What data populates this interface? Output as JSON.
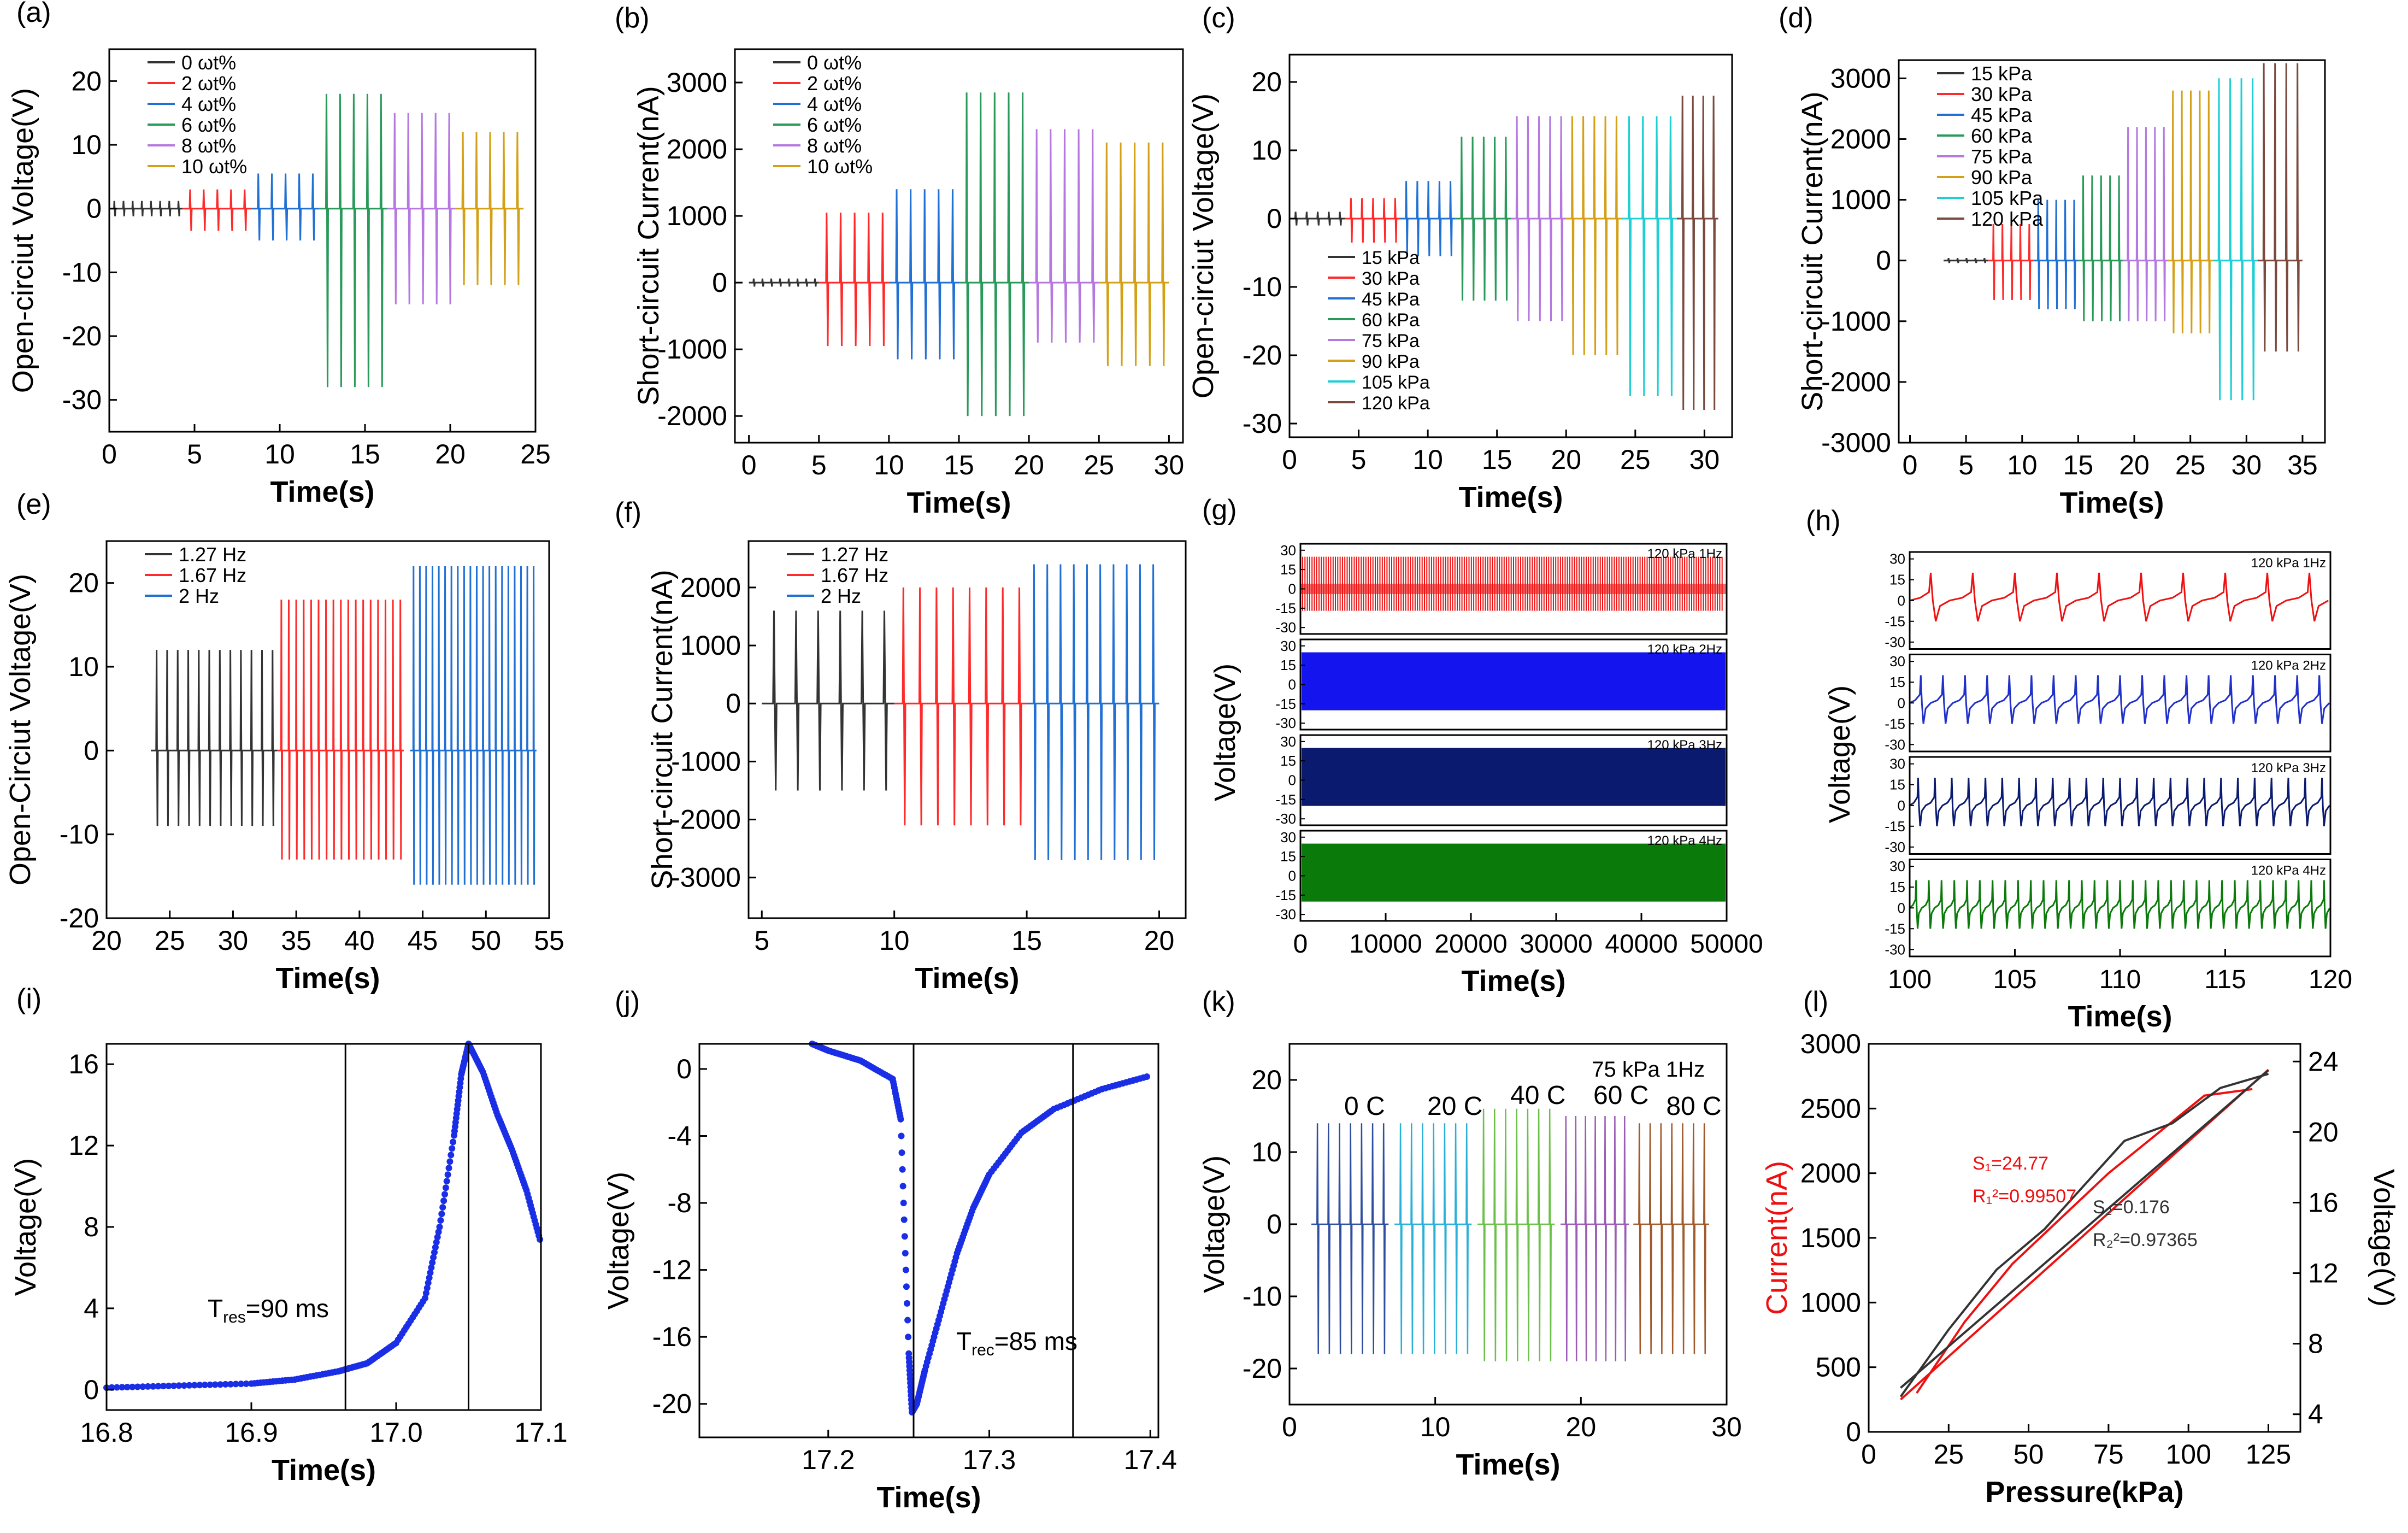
{
  "colors": {
    "c0": "#333333",
    "c1": "#ff2a2a",
    "c2": "#2170d4",
    "c3": "#2a9a5a",
    "c4": "#b578e0",
    "c5": "#d4a017",
    "c6": "#1fcfd4",
    "c7": "#7b4a3e",
    "navy": "#0a1a6e",
    "blue": "#1414ee",
    "green": "#0a7a0a",
    "pred": "#ee1010",
    "pblue": "#2030c8",
    "dotblue": "#1a2ee6",
    "k0": "#2f4ea0",
    "k1": "#2ab0d8",
    "k2": "#6cc04a",
    "k3": "#9a5cb4",
    "k4": "#a05a2c"
  },
  "chart_data": [
    {
      "panel": "(a)",
      "type": "line",
      "xlabel": "Time(s)",
      "ylabel": "Open-circiut Voltage(V)",
      "xlim": [
        0,
        25
      ],
      "ylim": [
        -35,
        25
      ],
      "xticks": [
        "0",
        "5",
        "10",
        "15",
        "20",
        "25"
      ],
      "yticks": [
        "-30",
        "-20",
        "-10",
        "0",
        "10",
        "20"
      ],
      "legend_position": "top-left",
      "series": [
        {
          "name": "0 ωt%",
          "x_range": [
            0,
            4.3
          ],
          "peak": 1.2,
          "trough": -1.2,
          "cycles": 8
        },
        {
          "name": "2 ωt%",
          "x_range": [
            4.3,
            8.3
          ],
          "peak": 3,
          "trough": -3.5,
          "cycles": 5
        },
        {
          "name": "4 ωt%",
          "x_range": [
            8.3,
            12.3
          ],
          "peak": 5.5,
          "trough": -5,
          "cycles": 5
        },
        {
          "name": "6 ωt%",
          "x_range": [
            12.3,
            16.3
          ],
          "peak": 18,
          "trough": -28,
          "cycles": 5
        },
        {
          "name": "8 ωt%",
          "x_range": [
            16.3,
            20.3
          ],
          "peak": 15,
          "trough": -15,
          "cycles": 5
        },
        {
          "name": "10 ωt%",
          "x_range": [
            20.3,
            24.3
          ],
          "peak": 12,
          "trough": -12,
          "cycles": 5
        }
      ]
    },
    {
      "panel": "(b)",
      "type": "line",
      "xlabel": "Time(s)",
      "ylabel": "Short-circuit Current(nA)",
      "xlim": [
        -1,
        31
      ],
      "ylim": [
        -2400,
        3500
      ],
      "xticks": [
        "0",
        "5",
        "10",
        "15",
        "20",
        "25",
        "30"
      ],
      "yticks": [
        "-2000",
        "-1000",
        "0",
        "1000",
        "2000",
        "3000"
      ],
      "legend_position": "top-left",
      "series": [
        {
          "name": "0 ωt%",
          "x_range": [
            0,
            5
          ],
          "peak": 60,
          "trough": -60,
          "cycles": 8
        },
        {
          "name": "2 ωt%",
          "x_range": [
            5,
            10
          ],
          "peak": 1050,
          "trough": -950,
          "cycles": 5
        },
        {
          "name": "4 ωt%",
          "x_range": [
            10,
            15
          ],
          "peak": 1400,
          "trough": -1150,
          "cycles": 5
        },
        {
          "name": "6 ωt%",
          "x_range": [
            15,
            20
          ],
          "peak": 2850,
          "trough": -2000,
          "cycles": 5
        },
        {
          "name": "8 ωt%",
          "x_range": [
            20,
            25
          ],
          "peak": 2300,
          "trough": -900,
          "cycles": 5
        },
        {
          "name": "10 ωt%",
          "x_range": [
            25,
            30
          ],
          "peak": 2100,
          "trough": -1250,
          "cycles": 5
        }
      ]
    },
    {
      "panel": "(c)",
      "type": "line",
      "xlabel": "Time(s)",
      "ylabel": "Open-circiut Voltage(V)",
      "xlim": [
        0,
        32
      ],
      "ylim": [
        -32,
        24
      ],
      "xticks": [
        "0",
        "5",
        "10",
        "15",
        "20",
        "25",
        "30"
      ],
      "yticks": [
        "-30",
        "-20",
        "-10",
        "0",
        "10",
        "20"
      ],
      "legend_position": "bottom-left",
      "series": [
        {
          "name": "15 kPa",
          "x_range": [
            0,
            4
          ],
          "peak": 1,
          "trough": -1,
          "cycles": 5
        },
        {
          "name": "30 kPa",
          "x_range": [
            4,
            8
          ],
          "peak": 3,
          "trough": -3.5,
          "cycles": 5
        },
        {
          "name": "45 kPa",
          "x_range": [
            8,
            12
          ],
          "peak": 5.5,
          "trough": -5.5,
          "cycles": 5
        },
        {
          "name": "60 kPa",
          "x_range": [
            12,
            16
          ],
          "peak": 12,
          "trough": -12,
          "cycles": 5
        },
        {
          "name": "75 kPa",
          "x_range": [
            16,
            20
          ],
          "peak": 15,
          "trough": -15,
          "cycles": 5
        },
        {
          "name": "90 kPa",
          "x_range": [
            20,
            24
          ],
          "peak": 15,
          "trough": -20,
          "cycles": 5
        },
        {
          "name": "105 kPa",
          "x_range": [
            24,
            28
          ],
          "peak": 15,
          "trough": -26,
          "cycles": 4
        },
        {
          "name": "120 kPa",
          "x_range": [
            28,
            31
          ],
          "peak": 18,
          "trough": -28,
          "cycles": 4
        }
      ]
    },
    {
      "panel": "(d)",
      "type": "line",
      "xlabel": "Time(s)",
      "ylabel": "Short-circuit Current(nA)",
      "xlim": [
        -1,
        37
      ],
      "ylim": [
        -3000,
        3300
      ],
      "xticks": [
        "0",
        "5",
        "10",
        "15",
        "20",
        "25",
        "30",
        "35"
      ],
      "yticks": [
        "-3000",
        "-2000",
        "-1000",
        "0",
        "1000",
        "2000",
        "3000"
      ],
      "legend_position": "top-left",
      "series": [
        {
          "name": "15 kPa",
          "x_range": [
            3,
            7
          ],
          "peak": 40,
          "trough": -40,
          "cycles": 5
        },
        {
          "name": "30 kPa",
          "x_range": [
            7,
            11
          ],
          "peak": 600,
          "trough": -650,
          "cycles": 5
        },
        {
          "name": "45 kPa",
          "x_range": [
            11,
            15
          ],
          "peak": 1000,
          "trough": -800,
          "cycles": 5
        },
        {
          "name": "60 kPa",
          "x_range": [
            15,
            19
          ],
          "peak": 1400,
          "trough": -1000,
          "cycles": 5
        },
        {
          "name": "75 kPa",
          "x_range": [
            19,
            23
          ],
          "peak": 2200,
          "trough": -1000,
          "cycles": 5
        },
        {
          "name": "90 kPa",
          "x_range": [
            23,
            27
          ],
          "peak": 2800,
          "trough": -1200,
          "cycles": 5
        },
        {
          "name": "105 kPa",
          "x_range": [
            27,
            31
          ],
          "peak": 3000,
          "trough": -2300,
          "cycles": 4
        },
        {
          "name": "120 kPa",
          "x_range": [
            31,
            35
          ],
          "peak": 3250,
          "trough": -1500,
          "cycles": 4
        }
      ]
    },
    {
      "panel": "(e)",
      "type": "line",
      "xlabel": "Time(s)",
      "ylabel": "Open-Circiut Voltage(V)",
      "xlim": [
        20,
        55
      ],
      "ylim": [
        -20,
        25
      ],
      "xticks": [
        "20",
        "25",
        "30",
        "35",
        "40",
        "45",
        "50",
        "55"
      ],
      "yticks": [
        "-20",
        "-10",
        "0",
        "10",
        "20"
      ],
      "legend_position": "top-left",
      "series": [
        {
          "name": "1.27 Hz",
          "x_range": [
            23.5,
            33.5
          ],
          "peak": 12,
          "trough": -9,
          "cycles": 12
        },
        {
          "name": "1.67 Hz",
          "x_range": [
            33.5,
            43.5
          ],
          "peak": 18,
          "trough": -13,
          "cycles": 17
        },
        {
          "name": "2 Hz",
          "x_range": [
            44,
            54
          ],
          "peak": 22,
          "trough": -16,
          "cycles": 20
        }
      ]
    },
    {
      "panel": "(f)",
      "type": "line",
      "xlabel": "Time(s)",
      "ylabel": "Short-circuit Current(nA)",
      "xlim": [
        4.5,
        21
      ],
      "ylim": [
        -3700,
        2800
      ],
      "xticks": [
        "5",
        "10",
        "15",
        "20"
      ],
      "yticks": [
        "-3000",
        "-2000",
        "-1000",
        "0",
        "1000",
        "2000"
      ],
      "legend_position": "top-left",
      "series": [
        {
          "name": "1.27 Hz",
          "x_range": [
            5,
            10
          ],
          "peak": 1600,
          "trough": -1500,
          "cycles": 6
        },
        {
          "name": "1.67 Hz",
          "x_range": [
            10,
            15
          ],
          "peak": 2000,
          "trough": -2100,
          "cycles": 8
        },
        {
          "name": "2 Hz",
          "x_range": [
            15,
            20
          ],
          "peak": 2400,
          "trough": -2700,
          "cycles": 10
        }
      ]
    },
    {
      "panel": "(g)",
      "type": "line",
      "xlabel": "Time(s)",
      "ylabel": "Voltage(V)",
      "xlim": [
        0,
        50000
      ],
      "xticks": [
        "0",
        "10000",
        "20000",
        "30000",
        "40000",
        "50000"
      ],
      "sub_yticks": [
        "30",
        "15",
        "0",
        "-15",
        "-30"
      ],
      "subplots": [
        {
          "label": "120 kPa 1Hz",
          "amplitude": 25
        },
        {
          "label": "120 kPa 2Hz",
          "amplitude": 25
        },
        {
          "label": "120 kPa 3Hz",
          "amplitude": 25
        },
        {
          "label": "120 kPa 4Hz",
          "amplitude": 25
        }
      ]
    },
    {
      "panel": "(h)",
      "type": "line",
      "xlabel": "Time(s)",
      "ylabel": "Voltage(V)",
      "xlim": [
        100,
        120
      ],
      "xticks": [
        "100",
        "105",
        "110",
        "115",
        "120"
      ],
      "sub_yticks": [
        "30",
        "15",
        "0",
        "-15",
        "-30"
      ],
      "subplots": [
        {
          "label": "120 kPa 1Hz",
          "peak": 20,
          "trough": -15,
          "cycles": 10
        },
        {
          "label": "120 kPa 2Hz",
          "peak": 20,
          "trough": -15,
          "cycles": 19
        },
        {
          "label": "120 kPa 3Hz",
          "peak": 20,
          "trough": -15,
          "cycles": 25
        },
        {
          "label": "120 kPa 4Hz",
          "peak": 20,
          "trough": -15,
          "cycles": 33
        }
      ]
    },
    {
      "panel": "(i)",
      "type": "scatter",
      "xlabel": "Time(s)",
      "ylabel": "Voltage(V)",
      "xlim": [
        16.8,
        17.1
      ],
      "ylim": [
        -1,
        17
      ],
      "xticks": [
        "16.8",
        "16.9",
        "17.0",
        "17.1"
      ],
      "yticks": [
        "0",
        "4",
        "8",
        "12",
        "16"
      ],
      "vlines": [
        16.965,
        17.05
      ],
      "annotation": {
        "label": "T",
        "sub": "res",
        "value": "=90 ms"
      },
      "x": [
        16.8,
        16.85,
        16.9,
        16.93,
        16.96,
        16.98,
        17.0,
        17.02,
        17.03,
        17.04,
        17.045,
        17.05,
        17.06,
        17.07,
        17.08,
        17.09,
        17.1
      ],
      "y": [
        0.1,
        0.2,
        0.3,
        0.5,
        0.9,
        1.3,
        2.3,
        4.5,
        8,
        12.5,
        15.5,
        17,
        15.6,
        13.5,
        11.8,
        9.8,
        7.2
      ]
    },
    {
      "panel": "(j)",
      "type": "scatter",
      "xlabel": "Time(s)",
      "ylabel": "Voltage(V)",
      "xlim": [
        17.12,
        17.405
      ],
      "ylim": [
        -22,
        1.5
      ],
      "xticks": [
        "17.2",
        "17.3",
        "17.4"
      ],
      "yticks": [
        "0",
        "-4",
        "-8",
        "-12",
        "-16",
        "-20"
      ],
      "vlines": [
        17.253,
        17.352
      ],
      "annotation": {
        "label": "T",
        "sub": "rec",
        "value": "=85 ms"
      },
      "x": [
        17.19,
        17.2,
        17.22,
        17.24,
        17.245,
        17.25,
        17.252,
        17.255,
        17.26,
        17.27,
        17.28,
        17.29,
        17.3,
        17.32,
        17.34,
        17.37,
        17.4
      ],
      "y": [
        1.5,
        1.1,
        0.5,
        -0.6,
        -3,
        -17,
        -20.5,
        -20,
        -18,
        -14.5,
        -11,
        -8.3,
        -6.3,
        -3.8,
        -2.4,
        -1.2,
        -0.4
      ]
    },
    {
      "panel": "(k)",
      "type": "line",
      "xlabel": "Time(s)",
      "ylabel": "Voltage(V)",
      "xlim": [
        0,
        30
      ],
      "ylim": [
        -25,
        25
      ],
      "xticks": [
        "0",
        "10",
        "20",
        "30"
      ],
      "yticks": [
        "-20",
        "-10",
        "0",
        "10",
        "20"
      ],
      "annotation": "75 kPa 1Hz",
      "series": [
        {
          "name": "0 C",
          "x_range": [
            1.5,
            6.8
          ],
          "peak": 14,
          "trough": -18,
          "cycles": 7
        },
        {
          "name": "20 C",
          "x_range": [
            7.2,
            12.5
          ],
          "peak": 14,
          "trough": -18,
          "cycles": 7
        },
        {
          "name": "40 C",
          "x_range": [
            12.9,
            18.2
          ],
          "peak": 16,
          "trough": -19,
          "cycles": 7
        },
        {
          "name": "60 C",
          "x_range": [
            18.6,
            23.3
          ],
          "peak": 15,
          "trough": -19,
          "cycles": 7
        },
        {
          "name": "80 C",
          "x_range": [
            23.6,
            28.8
          ],
          "peak": 14,
          "trough": -18,
          "cycles": 7
        }
      ]
    },
    {
      "panel": "(l)",
      "type": "line",
      "xlabel": "Pressure(kPa)",
      "ylabel": "Current(nA)",
      "ylabel_right": "Voltage(V)",
      "xlim": [
        0,
        135
      ],
      "ylim": [
        0,
        3000
      ],
      "ylim_right": [
        3,
        25
      ],
      "xticks": [
        "0",
        "25",
        "50",
        "75",
        "100",
        "125"
      ],
      "yticks": [
        "0",
        "500",
        "1000",
        "1500",
        "2000",
        "2500",
        "3000"
      ],
      "yticks_right": [
        "4",
        "8",
        "12",
        "16",
        "20",
        "24"
      ],
      "series": [
        {
          "name": "Current",
          "axis": "left",
          "x": [
            15,
            30,
            45,
            60,
            75,
            90,
            105,
            120
          ],
          "y": [
            300,
            850,
            1300,
            1650,
            2000,
            2300,
            2600,
            2650
          ]
        },
        {
          "name": "Current fit",
          "axis": "left",
          "x": [
            10,
            125
          ],
          "y": [
            250,
            2800
          ]
        },
        {
          "name": "Voltage",
          "axis": "right",
          "x": [
            10,
            25,
            40,
            55,
            70,
            80,
            95,
            110,
            125
          ],
          "y": [
            5,
            8.8,
            12.2,
            14.5,
            17.5,
            19.5,
            20.5,
            22.5,
            23.3
          ]
        },
        {
          "name": "Voltage fit",
          "axis": "right",
          "x": [
            10,
            125
          ],
          "y": [
            5.5,
            23.5
          ]
        }
      ],
      "annotations": [
        {
          "text": "S₁=24.77",
          "color_key": "pred"
        },
        {
          "text": "R₁²=0.99507",
          "color_key": "pred"
        },
        {
          "text": "S₂=0.176",
          "color_key": "c0"
        },
        {
          "text": "R₂²=0.97365",
          "color_key": "c0"
        }
      ]
    }
  ]
}
